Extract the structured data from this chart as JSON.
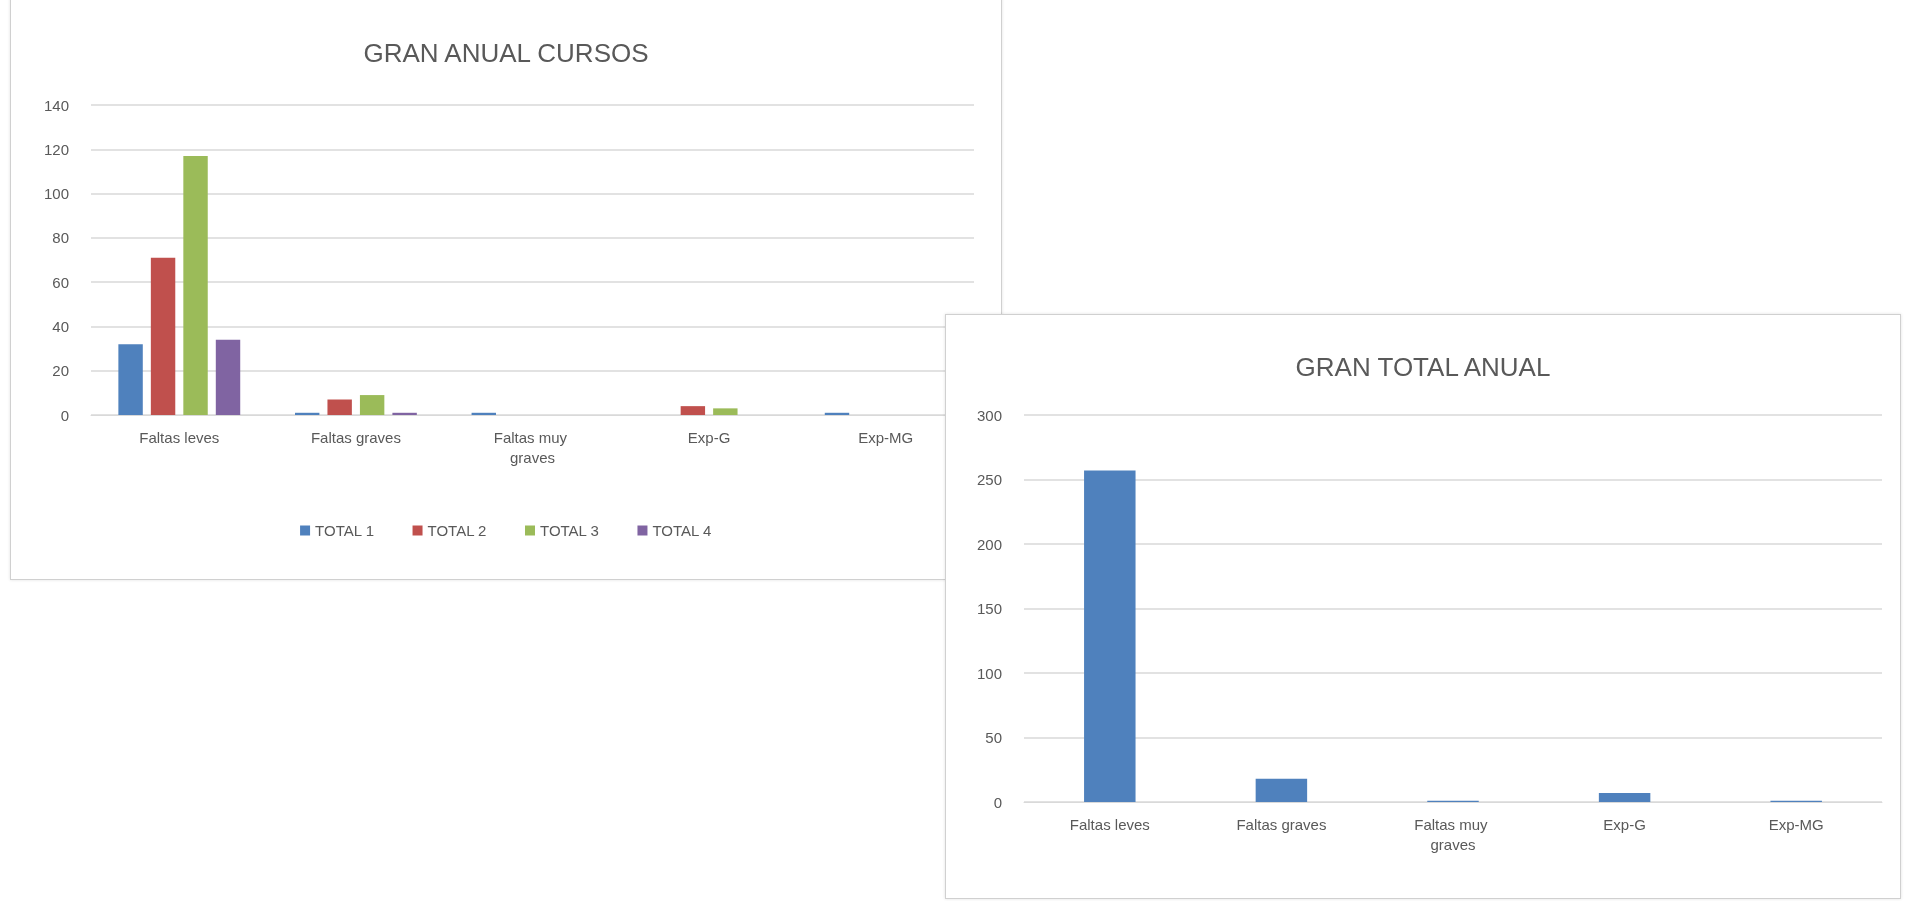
{
  "chart_data": [
    {
      "type": "bar",
      "title": "GRAN ANUAL CURSOS",
      "categories": [
        "Faltas leves",
        "Faltas graves",
        "Faltas muy graves",
        "Exp-G",
        "Exp-MG"
      ],
      "series": [
        {
          "name": "TOTAL 1",
          "color": "#4f81bd",
          "values": [
            32,
            1,
            1,
            0,
            1
          ]
        },
        {
          "name": "TOTAL 2",
          "color": "#c0504d",
          "values": [
            71,
            7,
            0,
            4,
            0
          ]
        },
        {
          "name": "TOTAL 3",
          "color": "#9bbb59",
          "values": [
            117,
            9,
            0,
            3,
            0
          ]
        },
        {
          "name": "TOTAL 4",
          "color": "#8064a2",
          "values": [
            34,
            1,
            0,
            0,
            0
          ]
        }
      ],
      "ylim": [
        0,
        140
      ],
      "yticks": [
        0,
        20,
        40,
        60,
        80,
        100,
        120,
        140
      ],
      "grid": "y",
      "legend": "bottom"
    },
    {
      "type": "bar",
      "title": "GRAN TOTAL ANUAL",
      "categories": [
        "Faltas leves",
        "Faltas graves",
        "Faltas muy graves",
        "Exp-G",
        "Exp-MG"
      ],
      "values": [
        257,
        18,
        1,
        7,
        1
      ],
      "color": "#4f81bd",
      "ylim": [
        0,
        300
      ],
      "yticks": [
        0,
        50,
        100,
        150,
        200,
        250,
        300
      ],
      "grid": "y"
    }
  ]
}
